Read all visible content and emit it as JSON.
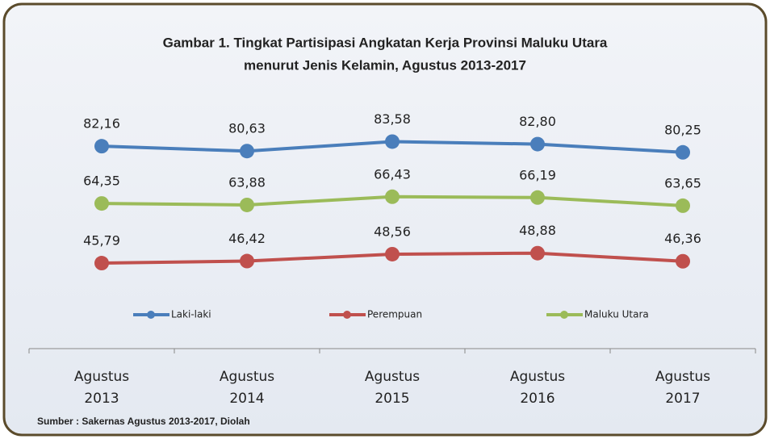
{
  "chart_data": {
    "type": "line",
    "title": [
      "Gambar 1. Tingkat Partisipasi Angkatan Kerja Provinsi Maluku Utara",
      "menurut Jenis Kelamin, Agustus 2013-2017"
    ],
    "categories": [
      "Agustus 2013",
      "Agustus 2014",
      "Agustus 2015",
      "Agustus 2016",
      "Agustus 2017"
    ],
    "series": [
      {
        "name": "Laki-laki",
        "color": "#4a7ebb",
        "values": [
          82.16,
          80.63,
          83.58,
          82.8,
          80.25
        ],
        "value_labels": [
          "82,16",
          "80,63",
          "83,58",
          "82,80",
          "80,25"
        ]
      },
      {
        "name": "Perempuan",
        "color": "#c0504d",
        "values": [
          45.79,
          46.42,
          48.56,
          48.88,
          46.36
        ],
        "value_labels": [
          "45,79",
          "46,42",
          "48,56",
          "48,88",
          "46,36"
        ]
      },
      {
        "name": "Maluku Utara",
        "color": "#9bbb59",
        "values": [
          64.35,
          63.88,
          66.43,
          66.19,
          63.65
        ],
        "value_labels": [
          "64,35",
          "63,88",
          "66,43",
          "66,19",
          "63,65"
        ]
      }
    ],
    "ylim": [
      35,
      95
    ],
    "source": "Sumber : Sakernas Agustus 2013-2017, Diolah"
  }
}
